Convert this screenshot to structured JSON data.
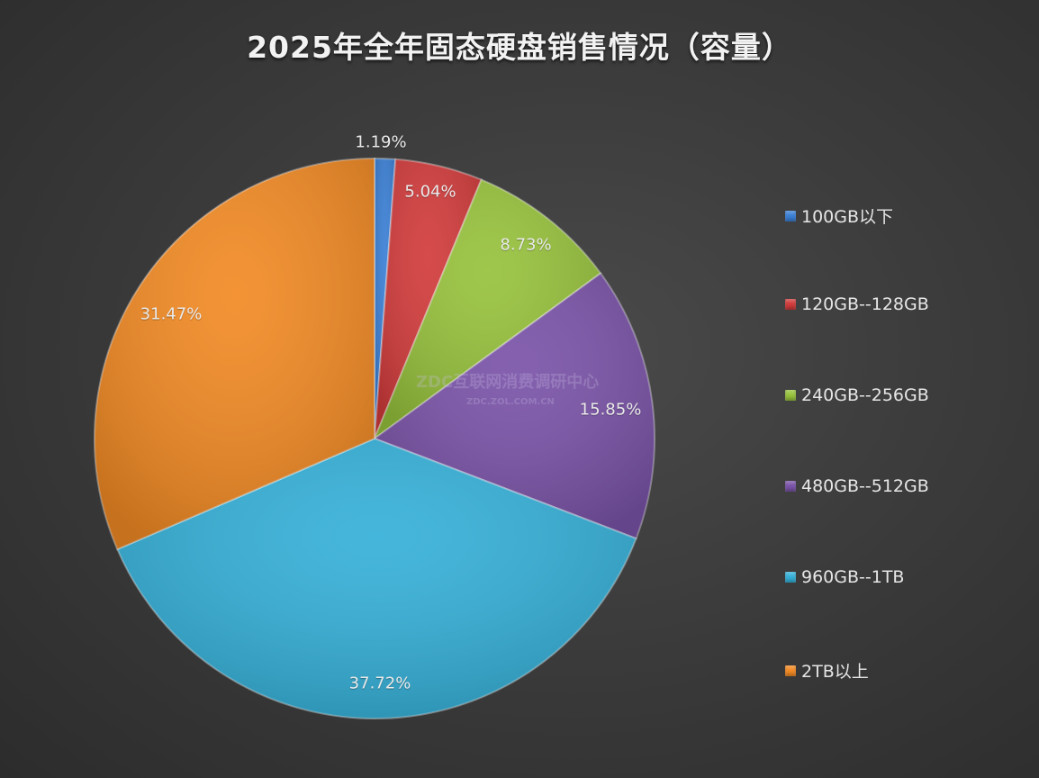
{
  "title": "2025年全年固态硬盘销售情况（容量）",
  "watermark": {
    "line1": "ZDC互联网消费调研中心",
    "line2": "ZDC.ZOL.COM.CN"
  },
  "legend": [
    {
      "label": "100GB以下",
      "color": "#3a7fd5"
    },
    {
      "label": "120GB--128GB",
      "color": "#d23b3b"
    },
    {
      "label": "240GB--256GB",
      "color": "#97c23c"
    },
    {
      "label": "480GB--512GB",
      "color": "#7a53a8"
    },
    {
      "label": "960GB--1TB",
      "color": "#35b0d8"
    },
    {
      "label": "2TB以上",
      "color": "#f28a24"
    }
  ],
  "chart_data": {
    "type": "pie",
    "title": "2025年全年固态硬盘销售情况（容量）",
    "categories": [
      "100GB以下",
      "120GB--128GB",
      "240GB--256GB",
      "480GB--512GB",
      "960GB--1TB",
      "2TB以上"
    ],
    "values": [
      1.19,
      5.04,
      8.73,
      15.85,
      37.72,
      31.47
    ],
    "labels": [
      "1.19%",
      "5.04%",
      "8.73%",
      "15.85%",
      "37.72%",
      "31.47%"
    ],
    "colors": [
      "#3a7fd5",
      "#d23b3b",
      "#97c23c",
      "#7a53a8",
      "#35b0d8",
      "#f28a24"
    ],
    "start_angle_deg": 0,
    "direction": "clockwise",
    "legend_position": "right",
    "center": [
      416,
      487
    ],
    "radius": 311,
    "label_positions": [
      [
        423,
        158
      ],
      [
        478,
        213
      ],
      [
        584,
        272
      ],
      [
        678,
        455
      ],
      [
        422,
        759
      ],
      [
        190,
        349
      ]
    ]
  }
}
